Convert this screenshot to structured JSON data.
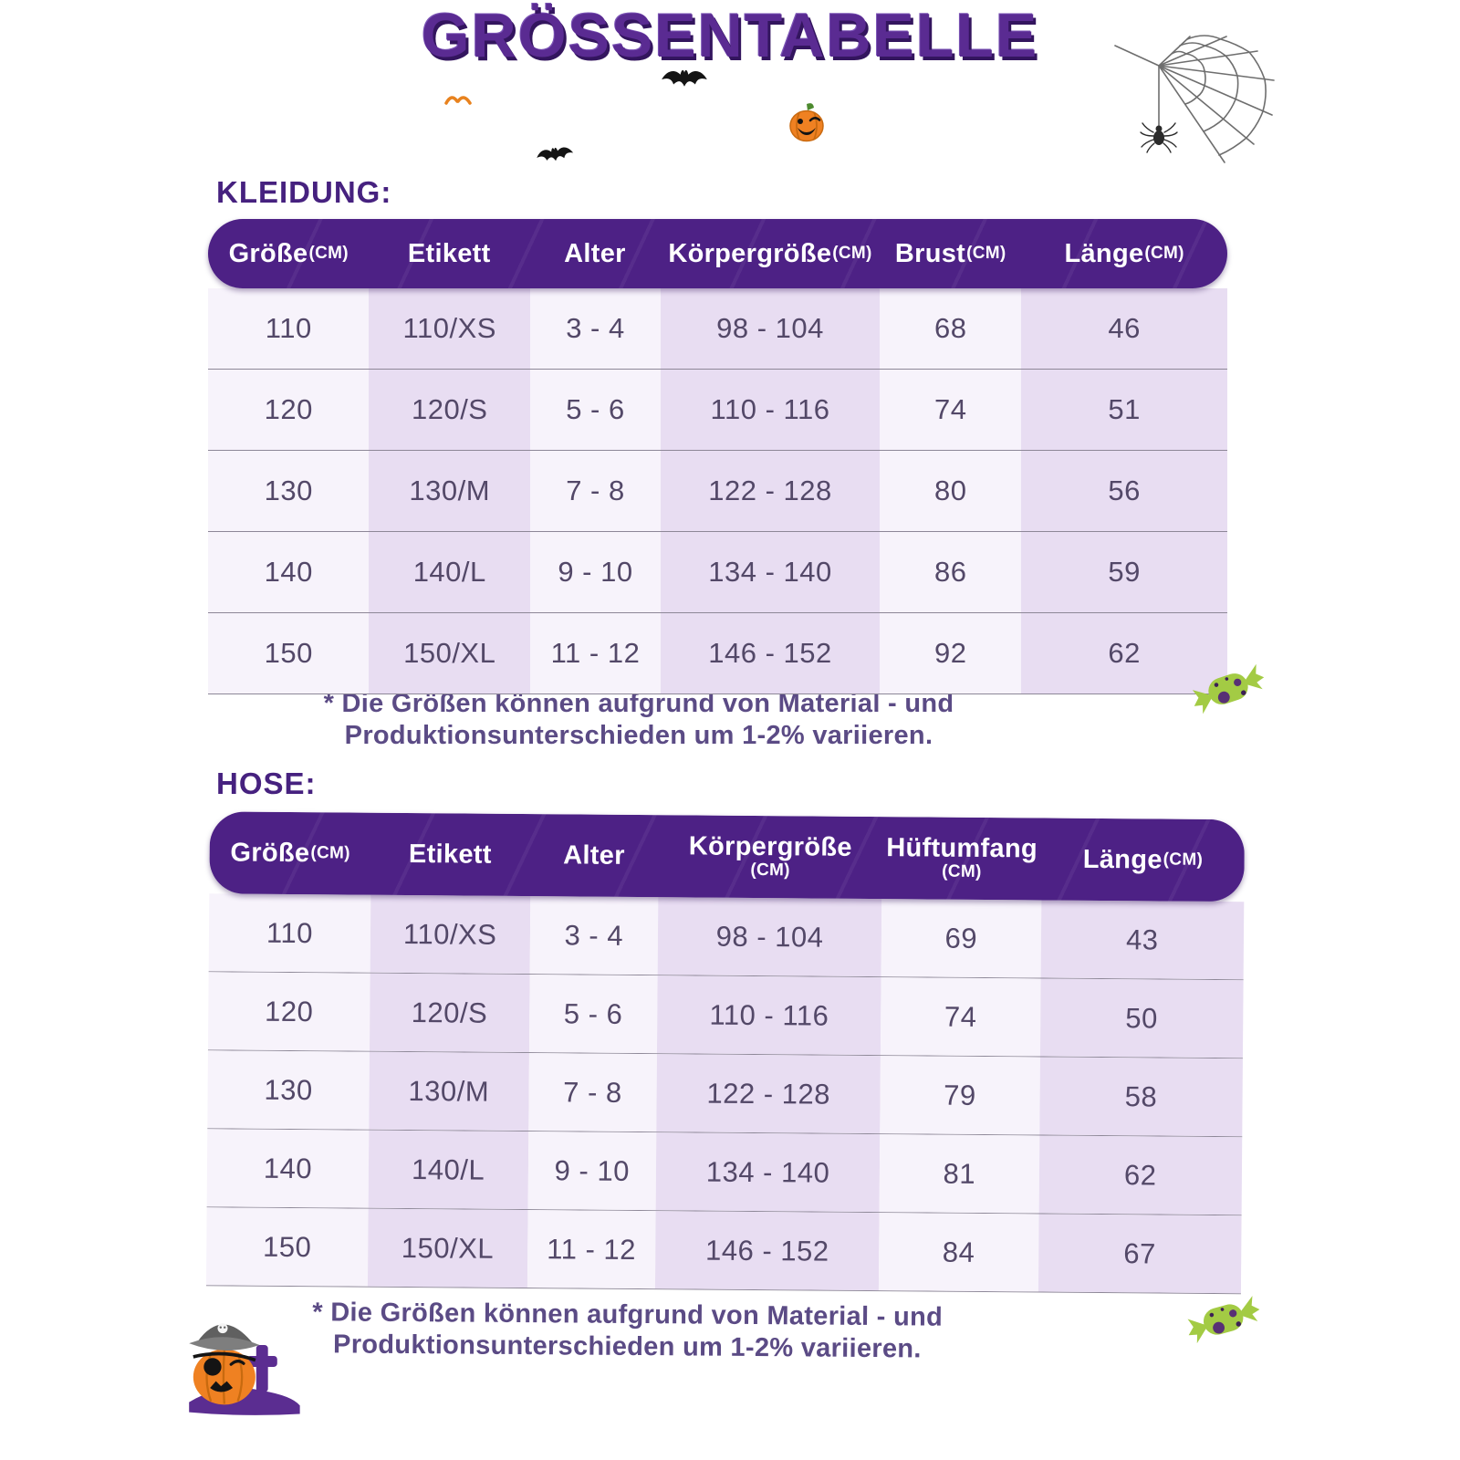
{
  "title": "GRÖSSENTABELLE",
  "icons": {
    "spider_web": "spider-web-icon",
    "bat": "bat-icon",
    "pumpkin": "pumpkin-icon",
    "candy": "candy-icon",
    "pirate_pumpkin": "pirate-pumpkin-icon"
  },
  "colors": {
    "header_purple": "#4d2185",
    "title_purple": "#5a2b92",
    "stripe_light": "#f7f3fb",
    "stripe_dark": "#e8ddf2",
    "body_text": "#534868",
    "accent_orange": "#ef8122",
    "candy_green": "#a3cb44"
  },
  "chart_data": [
    {
      "type": "table",
      "section_label": "KLEIDUNG:",
      "columns": [
        {
          "label": "Größe",
          "unit": "(CM)"
        },
        {
          "label": "Etikett",
          "unit": ""
        },
        {
          "label": "Alter",
          "unit": ""
        },
        {
          "label": "Körpergröße",
          "unit": "(CM)"
        },
        {
          "label": "Brust",
          "unit": "(CM)"
        },
        {
          "label": "Länge",
          "unit": "(CM)"
        }
      ],
      "rows": [
        [
          "110",
          "110/XS",
          "3 - 4",
          "98 - 104",
          "68",
          "46"
        ],
        [
          "120",
          "120/S",
          "5 - 6",
          "110 - 116",
          "74",
          "51"
        ],
        [
          "130",
          "130/M",
          "7 - 8",
          "122 - 128",
          "80",
          "56"
        ],
        [
          "140",
          "140/L",
          "9 - 10",
          "134 - 140",
          "86",
          "59"
        ],
        [
          "150",
          "150/XL",
          "11 - 12",
          "146 - 152",
          "92",
          "62"
        ]
      ],
      "footnote": [
        "* Die Größen können aufgrund von Material - und",
        "Produktionsunterschieden um 1-2% variieren."
      ]
    },
    {
      "type": "table",
      "section_label": "HOSE:",
      "columns": [
        {
          "label": "Größe",
          "unit": "(CM)"
        },
        {
          "label": "Etikett",
          "unit": ""
        },
        {
          "label": "Alter",
          "unit": ""
        },
        {
          "label": "Körpergröße",
          "unit": "(CM)"
        },
        {
          "label": "Hüftumfang",
          "unit": "(CM)"
        },
        {
          "label": "Länge",
          "unit": "(CM)"
        }
      ],
      "rows": [
        [
          "110",
          "110/XS",
          "3 - 4",
          "98 - 104",
          "69",
          "43"
        ],
        [
          "120",
          "120/S",
          "5 - 6",
          "110 - 116",
          "74",
          "50"
        ],
        [
          "130",
          "130/M",
          "7 - 8",
          "122 - 128",
          "79",
          "58"
        ],
        [
          "140",
          "140/L",
          "9 - 10",
          "134 - 140",
          "81",
          "62"
        ],
        [
          "150",
          "150/XL",
          "11 - 12",
          "146 - 152",
          "84",
          "67"
        ]
      ],
      "footnote": [
        "* Die Größen können aufgrund von Material - und",
        "Produktionsunterschieden um 1-2% variieren."
      ]
    }
  ]
}
